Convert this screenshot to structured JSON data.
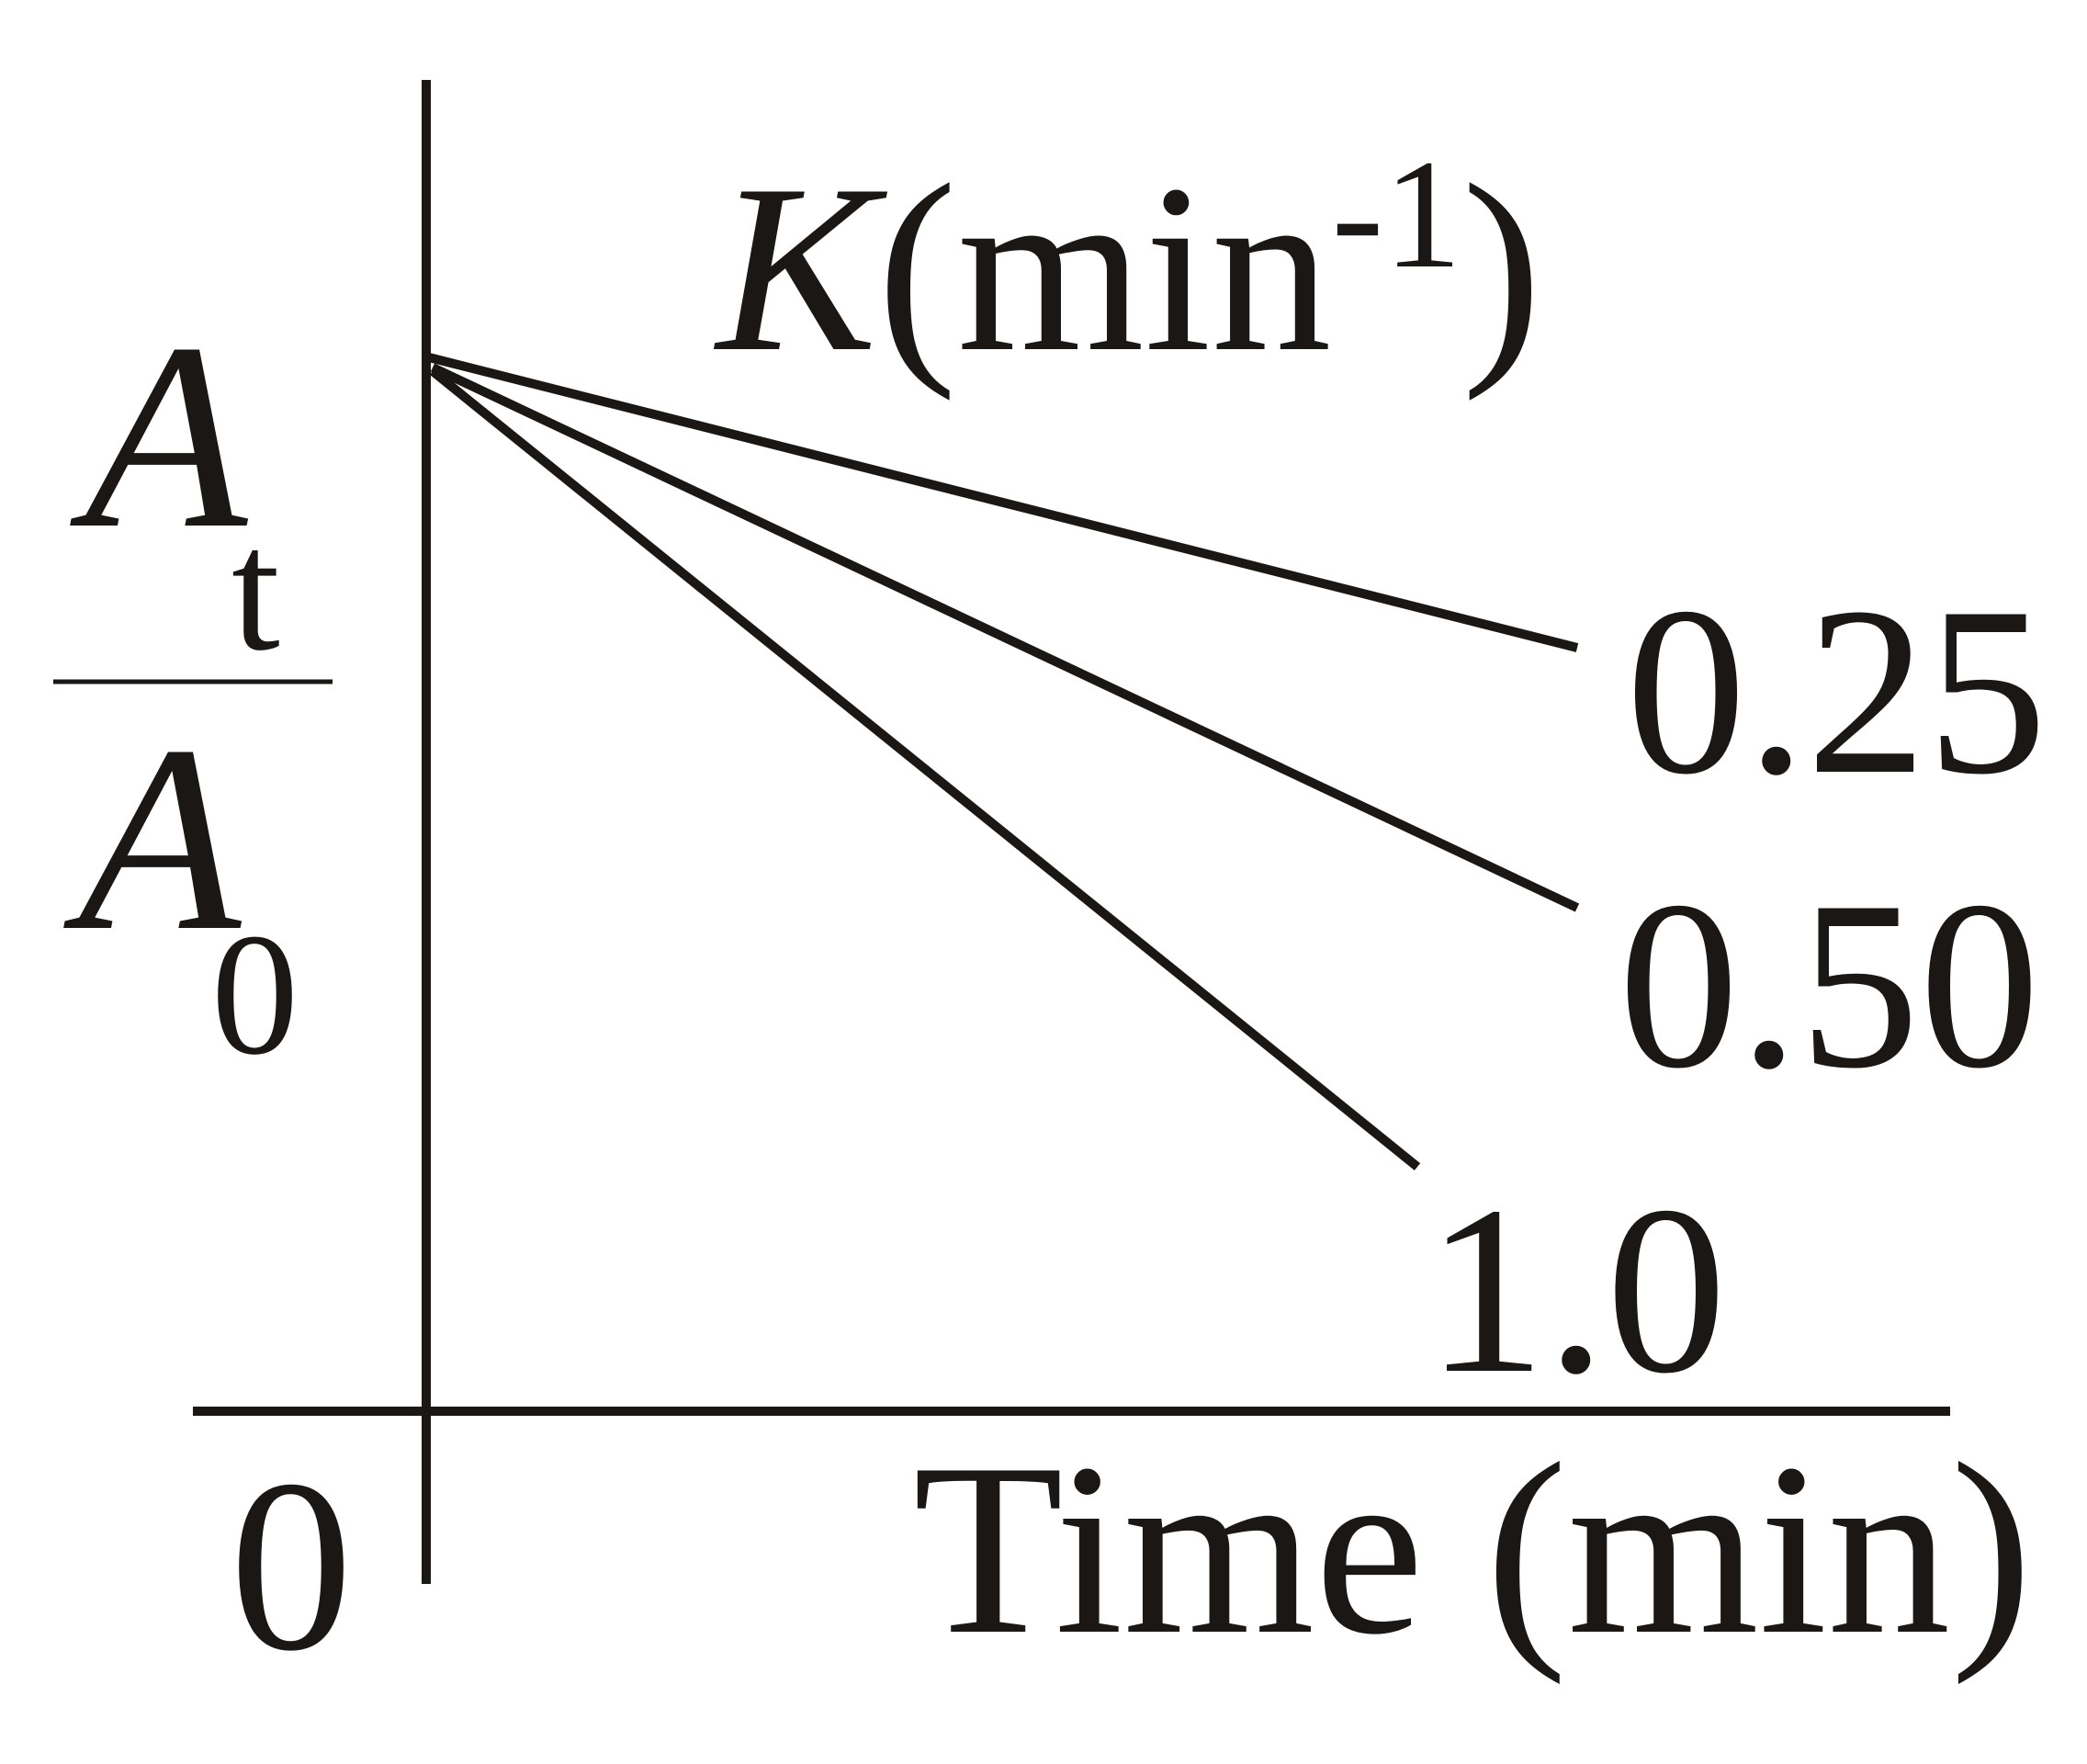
{
  "y_axis": {
    "numerator": {
      "symbol": "A",
      "subscript": "t"
    },
    "denominator": {
      "symbol": "A",
      "subscript": "0"
    }
  },
  "x_axis": {
    "label": "Time (min)",
    "origin": "0"
  },
  "legend_title": {
    "symbol": "K",
    "unit": "(min",
    "exponent": "-1",
    "close": ")"
  },
  "curves": [
    {
      "label": "0.25"
    },
    {
      "label": "0.50"
    },
    {
      "label": "1.0"
    }
  ]
}
